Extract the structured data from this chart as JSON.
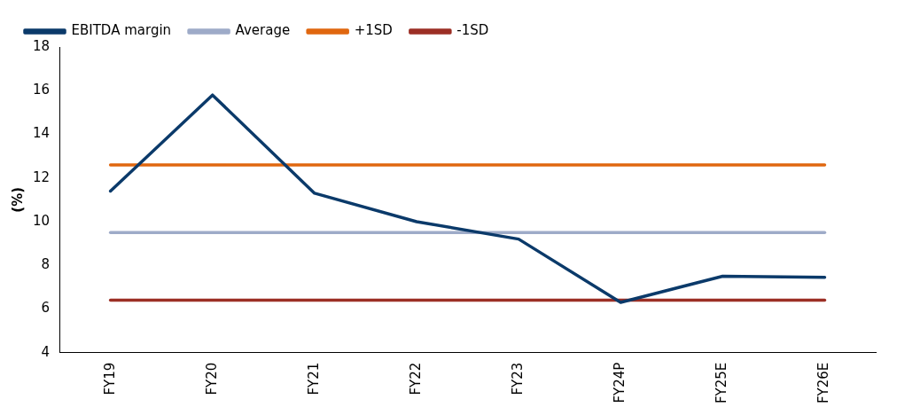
{
  "chart_data": {
    "type": "line",
    "ylabel": "(%)",
    "categories": [
      "FY19",
      "FY20",
      "FY21",
      "FY22",
      "FY23",
      "FY24P",
      "FY25E",
      "FY26E"
    ],
    "series": [
      {
        "name": "EBITDA margin",
        "color": "#0b3a6a",
        "values": [
          11.4,
          15.8,
          11.3,
          10.0,
          9.2,
          6.3,
          7.5,
          7.45
        ]
      },
      {
        "name": "Average",
        "color": "#9eabc8",
        "values": [
          9.5,
          9.5,
          9.5,
          9.5,
          9.5,
          9.5,
          9.5,
          9.5
        ]
      },
      {
        "name": "+1SD",
        "color": "#e0670f",
        "values": [
          12.6,
          12.6,
          12.6,
          12.6,
          12.6,
          12.6,
          12.6,
          12.6
        ]
      },
      {
        "name": "-1SD",
        "color": "#9c2f25",
        "values": [
          6.4,
          6.4,
          6.4,
          6.4,
          6.4,
          6.4,
          6.4,
          6.4
        ]
      }
    ],
    "ylim": [
      4,
      18
    ],
    "yticks": [
      4,
      6,
      8,
      10,
      12,
      14,
      16,
      18
    ],
    "grid": false,
    "legend": "top",
    "marker": "none",
    "line_style": "solid"
  }
}
